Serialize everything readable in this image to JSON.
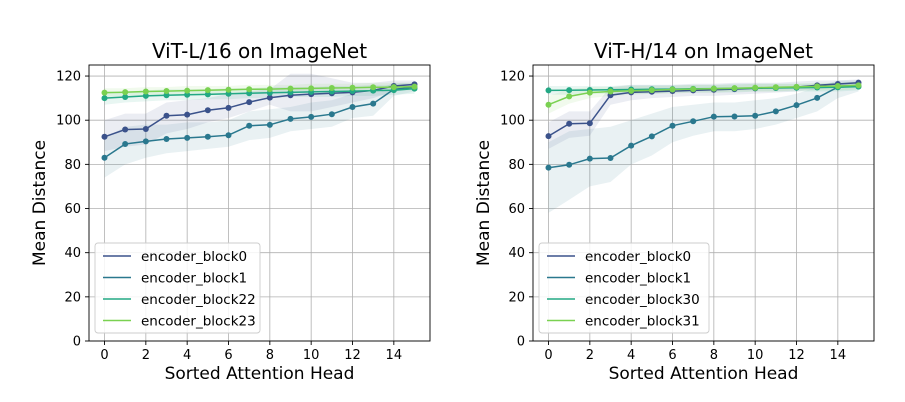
{
  "chart_data": [
    {
      "type": "line",
      "title": "ViT-L/16 on ImageNet",
      "xlabel": "Sorted Attention Head",
      "ylabel": "Mean Distance",
      "xlim": [
        -0.75,
        15.75
      ],
      "ylim": [
        0,
        125
      ],
      "xticks": [
        0,
        2,
        4,
        6,
        8,
        10,
        12,
        14
      ],
      "yticks": [
        0,
        20,
        40,
        60,
        80,
        100,
        120
      ],
      "grid": true,
      "legend_position": "lower-left",
      "x": [
        0,
        1,
        2,
        3,
        4,
        5,
        6,
        7,
        8,
        9,
        10,
        11,
        12,
        13,
        14,
        15
      ],
      "series": [
        {
          "name": "encoder_block0",
          "color": "#3b528b",
          "values": [
            92.5,
            95.8,
            96.0,
            102.0,
            102.5,
            104.5,
            105.6,
            108.2,
            110.2,
            111.3,
            111.8,
            112.2,
            112.6,
            113.5,
            115.5,
            116.2
          ],
          "band_low": [
            86,
            88,
            89,
            94,
            96,
            99,
            101,
            104,
            107,
            104,
            104,
            106,
            108,
            110,
            113,
            114
          ],
          "band_high": [
            100,
            103,
            103,
            108,
            109,
            110,
            112,
            113,
            114,
            121,
            121,
            119,
            117,
            117,
            118,
            118
          ]
        },
        {
          "name": "encoder_block1",
          "color": "#2a788e",
          "values": [
            83.0,
            89.2,
            90.4,
            91.5,
            92.0,
            92.5,
            93.2,
            97.5,
            97.9,
            100.6,
            101.5,
            102.7,
            106.0,
            107.5,
            114.0,
            115.0
          ],
          "band_low": [
            74,
            80,
            83,
            85,
            86,
            87,
            88,
            91,
            92,
            95,
            96,
            97,
            101,
            102,
            111,
            113
          ],
          "band_high": [
            92,
            97,
            98,
            98,
            99,
            99,
            100,
            104,
            105,
            106,
            108,
            109,
            112,
            113,
            117,
            117
          ]
        },
        {
          "name": "encoder_block22",
          "color": "#22a884",
          "values": [
            110.0,
            110.5,
            111.0,
            111.3,
            111.5,
            111.7,
            112.0,
            112.2,
            112.4,
            112.6,
            112.8,
            113.0,
            113.2,
            113.4,
            113.6,
            114.3
          ],
          "band_low": [
            107,
            108,
            108.5,
            109,
            109,
            109.5,
            109.5,
            110,
            110,
            110.5,
            110.5,
            110.5,
            111,
            111,
            111.5,
            112
          ],
          "band_high": [
            113,
            113,
            113.5,
            114,
            114,
            114,
            114.5,
            114.5,
            115,
            115,
            115,
            115.5,
            115.5,
            116,
            116,
            116.5
          ]
        },
        {
          "name": "encoder_block23",
          "color": "#7ad151",
          "values": [
            112.5,
            112.7,
            113.0,
            113.2,
            113.4,
            113.6,
            113.8,
            114.0,
            114.1,
            114.3,
            114.4,
            114.6,
            114.7,
            114.9,
            115.0,
            115.2
          ],
          "band_low": [
            110.5,
            111,
            111,
            111.5,
            111.5,
            112,
            112,
            112,
            112.5,
            112.5,
            112.5,
            113,
            113,
            113,
            113.5,
            113.5
          ],
          "band_high": [
            114.5,
            114.5,
            115,
            115,
            115.5,
            115.5,
            115.5,
            116,
            116,
            116,
            116.5,
            116.5,
            116.5,
            117,
            117,
            117
          ]
        }
      ]
    },
    {
      "type": "line",
      "title": "ViT-H/14 on ImageNet",
      "xlabel": "Sorted Attention Head",
      "ylabel": "Mean Distance",
      "xlim": [
        -0.75,
        15.75
      ],
      "ylim": [
        0,
        125
      ],
      "xticks": [
        0,
        2,
        4,
        6,
        8,
        10,
        12,
        14
      ],
      "yticks": [
        0,
        20,
        40,
        60,
        80,
        100,
        120
      ],
      "grid": true,
      "legend_position": "lower-left",
      "x": [
        0,
        1,
        2,
        3,
        4,
        5,
        6,
        7,
        8,
        9,
        10,
        11,
        12,
        13,
        14,
        15
      ],
      "series": [
        {
          "name": "encoder_block0",
          "color": "#3b528b",
          "values": [
            92.8,
            98.4,
            98.6,
            111.3,
            112.6,
            112.9,
            113.2,
            113.5,
            113.8,
            114.1,
            114.4,
            114.7,
            115.0,
            115.8,
            116.4,
            117.0
          ],
          "band_low": [
            87,
            92,
            93,
            107,
            109,
            110,
            110.5,
            111,
            111,
            111.5,
            112,
            112.5,
            113,
            114,
            115,
            115.5
          ],
          "band_high": [
            99,
            104,
            104,
            115,
            116,
            116,
            116,
            116.5,
            116.5,
            117,
            117,
            117,
            117.5,
            118,
            118,
            118.5
          ]
        },
        {
          "name": "encoder_block1",
          "color": "#2a788e",
          "values": [
            78.5,
            79.8,
            82.6,
            82.9,
            88.5,
            92.7,
            97.5,
            99.5,
            101.6,
            101.7,
            102.0,
            104.0,
            106.8,
            110.1,
            115.0,
            115.5
          ],
          "band_low": [
            58,
            64,
            70,
            72,
            80,
            84,
            90,
            93,
            95,
            95,
            96,
            98,
            101,
            104,
            110,
            113
          ],
          "band_high": [
            90,
            95,
            96,
            97,
            100,
            103,
            106,
            107,
            108,
            108,
            109,
            110,
            112,
            115,
            118,
            118
          ]
        },
        {
          "name": "encoder_block30",
          "color": "#22a884",
          "values": [
            113.5,
            113.6,
            113.7,
            113.8,
            113.9,
            114.0,
            114.1,
            114.2,
            114.3,
            114.4,
            114.5,
            114.6,
            114.7,
            114.8,
            114.9,
            115.2
          ],
          "band_low": [
            111.5,
            111.5,
            112,
            112,
            112,
            112,
            112.5,
            112.5,
            112.5,
            112.5,
            113,
            113,
            113,
            113,
            113,
            113.5
          ],
          "band_high": [
            115.5,
            115.5,
            115.5,
            115.5,
            116,
            116,
            116,
            116,
            116,
            116.5,
            116.5,
            116.5,
            116.5,
            116.5,
            117,
            117
          ]
        },
        {
          "name": "encoder_block31",
          "color": "#7ad151",
          "values": [
            107.0,
            110.8,
            112.5,
            113.0,
            113.3,
            113.6,
            113.9,
            114.1,
            114.3,
            114.5,
            114.7,
            114.9,
            115.1,
            115.3,
            115.5,
            115.8
          ],
          "band_low": [
            103,
            107.5,
            110,
            111,
            111.5,
            112,
            112,
            112.5,
            112.5,
            113,
            113,
            113,
            113.5,
            113.5,
            113.5,
            114
          ],
          "band_high": [
            111,
            114,
            115,
            115,
            115.5,
            115.5,
            115.5,
            116,
            116,
            116,
            116.5,
            116.5,
            116.5,
            117,
            117,
            117.5
          ]
        }
      ]
    }
  ]
}
